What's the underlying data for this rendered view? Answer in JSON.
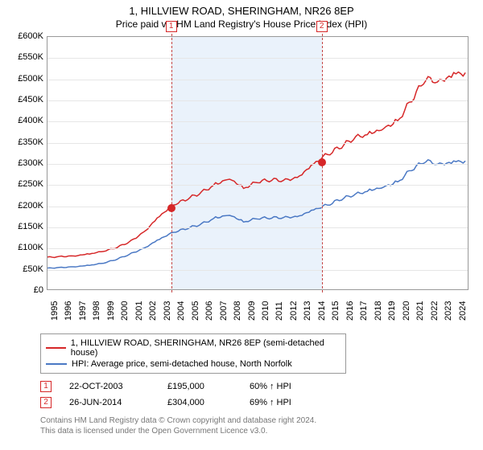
{
  "title": "1, HILLVIEW ROAD, SHERINGHAM, NR26 8EP",
  "subtitle": "Price paid vs. HM Land Registry's House Price Index (HPI)",
  "chart": {
    "type": "line",
    "x_years": [
      1995,
      1996,
      1997,
      1998,
      1999,
      2000,
      2001,
      2002,
      2003,
      2004,
      2005,
      2006,
      2007,
      2008,
      2009,
      2010,
      2011,
      2012,
      2013,
      2014,
      2015,
      2016,
      2017,
      2018,
      2019,
      2020,
      2021,
      2022,
      2023,
      2024
    ],
    "xlim": [
      1995,
      2025
    ],
    "ylim": [
      0,
      600000
    ],
    "ytick_step": 50000,
    "yticks": [
      "£0",
      "£50K",
      "£100K",
      "£150K",
      "£200K",
      "£250K",
      "£300K",
      "£350K",
      "£400K",
      "£450K",
      "£500K",
      "£550K",
      "£600K"
    ],
    "grid_color": "#e6e6e6",
    "axis_color": "#999999",
    "background_color": "#ffffff",
    "shade_color": "#eaf2fb",
    "shade_range": [
      2003.8,
      2014.5
    ],
    "series": [
      {
        "name": "1, HILLVIEW ROAD, SHERINGHAM, NR26 8EP (semi-detached house)",
        "color": "#d62728",
        "line_width": 1.5,
        "values": [
          76,
          78,
          80,
          84,
          90,
          100,
          115,
          140,
          175,
          200,
          215,
          230,
          250,
          265,
          240,
          255,
          260,
          258,
          270,
          300,
          320,
          340,
          360,
          370,
          385,
          400,
          450,
          500,
          490,
          515
        ],
        "units": "k"
      },
      {
        "name": "HPI: Average price, semi-detached house, North Norfolk",
        "color": "#4a78c4",
        "line_width": 1.5,
        "values": [
          50,
          52,
          54,
          57,
          62,
          72,
          85,
          100,
          120,
          135,
          145,
          155,
          170,
          178,
          160,
          168,
          170,
          170,
          175,
          190,
          200,
          215,
          225,
          235,
          245,
          255,
          285,
          305,
          295,
          305
        ],
        "units": "k"
      }
    ],
    "markers": [
      {
        "n": "1",
        "x": 2003.8,
        "y": 195000
      },
      {
        "n": "2",
        "x": 2014.5,
        "y": 304000
      }
    ],
    "marker_color": "#d62728",
    "marker_dash_color": "#c44444",
    "label_fontsize": 11
  },
  "legend": {
    "items": [
      {
        "label": "1, HILLVIEW ROAD, SHERINGHAM, NR26 8EP (semi-detached house)",
        "color": "#d62728"
      },
      {
        "label": "HPI: Average price, semi-detached house, North Norfolk",
        "color": "#4a78c4"
      }
    ]
  },
  "transactions": [
    {
      "n": "1",
      "date": "22-OCT-2003",
      "price": "£195,000",
      "delta": "60%",
      "arrow": "↑",
      "suffix": "HPI"
    },
    {
      "n": "2",
      "date": "26-JUN-2014",
      "price": "£304,000",
      "delta": "69%",
      "arrow": "↑",
      "suffix": "HPI"
    }
  ],
  "disclaimer1": "Contains HM Land Registry data © Crown copyright and database right 2024.",
  "disclaimer2": "This data is licensed under the Open Government Licence v3.0.",
  "colors": {
    "text": "#000000",
    "muted": "#777777"
  }
}
